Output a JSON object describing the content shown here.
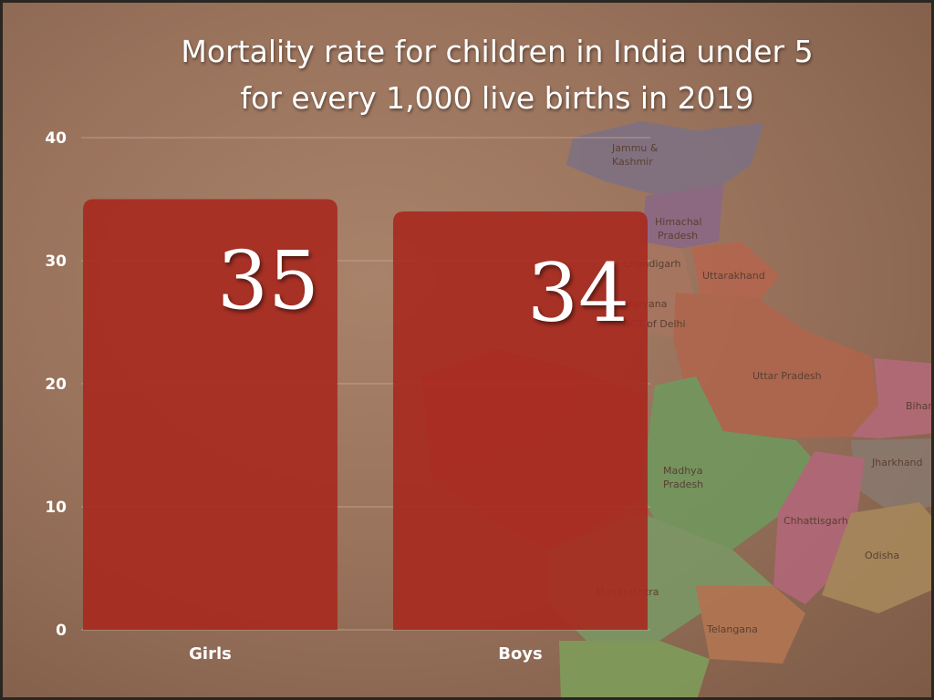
{
  "title_lines": [
    "Mortality rate for children in India under 5",
    "for every 1,000 live births in 2019"
  ],
  "colors": {
    "bar": "#a8291f",
    "gridline": "#c9ab96"
  },
  "background_map": {
    "labels": [
      "Jammu &",
      "Kashmir",
      "Himachal",
      "Pradesh",
      "Chandigarh",
      "Uttarakhand",
      "Haryana",
      "NCT of Delhi",
      "Uttar Pradesh",
      "Bihar",
      "Jharkhand",
      "Madhya",
      "Pradesh",
      "Chhattisgarh",
      "Odisha",
      "Telangana",
      "Maharashtra"
    ]
  },
  "chart_data": {
    "type": "bar",
    "title": "Mortality rate for children in India under 5 for every 1,000 live births in 2019",
    "categories": [
      "Girls",
      "Boys"
    ],
    "values": [
      35,
      34
    ],
    "data_labels": [
      "35",
      "34"
    ],
    "ylim": [
      0,
      40
    ],
    "yticks": [
      0,
      10,
      20,
      30,
      40
    ],
    "ytick_labels": [
      "0",
      "10",
      "20",
      "30",
      "40"
    ],
    "grid": true,
    "xlabel": "",
    "ylabel": ""
  }
}
